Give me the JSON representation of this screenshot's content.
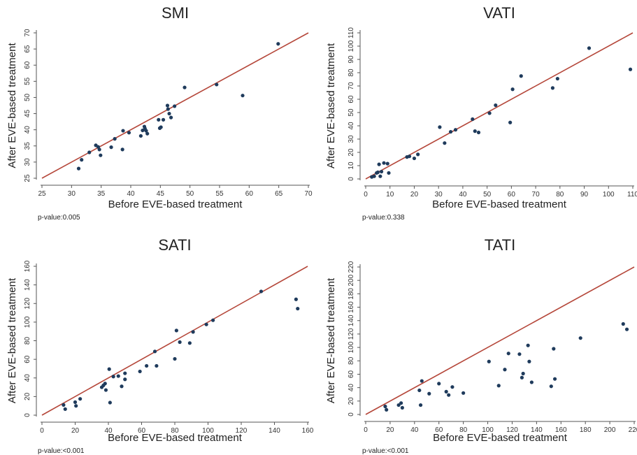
{
  "chart_data": [
    {
      "type": "scatter",
      "title": "SMI",
      "xlabel": "Before EVE-based treatment",
      "ylabel": "After EVE-based treatment",
      "pvalue": "p-value:0.005",
      "xlim": [
        25,
        70
      ],
      "ylim": [
        25,
        70
      ],
      "xticks": [
        25,
        30,
        35,
        40,
        45,
        50,
        55,
        60,
        65,
        70
      ],
      "yticks": [
        25,
        30,
        35,
        40,
        45,
        50,
        55,
        60,
        65,
        70
      ],
      "reference_line": "y = x",
      "point_color": "#1f3b5c",
      "line_color": "#b5473a",
      "x": [
        31.2,
        31.7,
        33.0,
        34.1,
        34.5,
        34.7,
        34.9,
        36.7,
        37.3,
        38.6,
        38.7,
        39.7,
        41.7,
        42.0,
        42.3,
        42.4,
        42.6,
        42.8,
        44.7,
        44.9,
        45.1,
        45.5,
        46.2,
        46.3,
        46.5,
        46.8,
        47.4,
        49.1,
        54.5,
        58.9,
        64.9
      ],
      "y": [
        28.0,
        30.7,
        33.0,
        35.2,
        34.7,
        33.9,
        32.1,
        34.6,
        37.2,
        33.9,
        39.7,
        39.1,
        38.1,
        39.8,
        41.0,
        40.4,
        39.7,
        38.8,
        43.1,
        40.5,
        40.8,
        43.1,
        47.5,
        46.4,
        45.0,
        43.8,
        47.3,
        53.1,
        54.0,
        50.6,
        66.6
      ]
    },
    {
      "type": "scatter",
      "title": "VATI",
      "xlabel": "Before EVE-based treatment",
      "ylabel": "After EVE-based treatment",
      "pvalue": "p-value:0.338",
      "xlim": [
        0,
        110
      ],
      "ylim": [
        0,
        110
      ],
      "xticks": [
        0,
        10,
        20,
        30,
        40,
        50,
        60,
        70,
        80,
        90,
        100,
        110
      ],
      "yticks": [
        0,
        10,
        20,
        30,
        40,
        50,
        60,
        70,
        80,
        90,
        100,
        110
      ],
      "reference_line": "y = x",
      "point_color": "#1f3b5c",
      "line_color": "#b5473a",
      "x": [
        2.5,
        3.5,
        4.5,
        5,
        5.5,
        6,
        6.5,
        7.5,
        9,
        9.5,
        17,
        18,
        20,
        21.5,
        30.5,
        32.5,
        35,
        37,
        44,
        45,
        46.5,
        51,
        53.5,
        59.5,
        60.5,
        64,
        77,
        79,
        92,
        109
      ],
      "y": [
        1.5,
        2,
        4.5,
        5,
        11,
        2,
        5.5,
        12,
        11.5,
        4.5,
        16.5,
        17,
        15.5,
        18.5,
        39,
        27,
        35.5,
        37,
        45,
        36,
        35,
        49.5,
        55.5,
        42.5,
        67.5,
        77.5,
        68.5,
        75.5,
        98.5,
        82.5
      ]
    },
    {
      "type": "scatter",
      "title": "SATI",
      "xlabel": "Before EVE-based treatment",
      "ylabel": "After EVE-based treatment",
      "pvalue": "p-value:<0.001",
      "xlim": [
        0,
        160
      ],
      "ylim": [
        0,
        160
      ],
      "xticks": [
        0,
        20,
        40,
        60,
        80,
        100,
        120,
        140,
        160
      ],
      "yticks": [
        0,
        20,
        40,
        60,
        80,
        100,
        120,
        140,
        160
      ],
      "reference_line": "y = x",
      "point_color": "#1f3b5c",
      "line_color": "#b5473a",
      "x": [
        13,
        14,
        20,
        20.5,
        23,
        36,
        37,
        38,
        38.5,
        40.5,
        41,
        43,
        46,
        48,
        50,
        50,
        59,
        63,
        68,
        69,
        80,
        81,
        83,
        89,
        91,
        99,
        103,
        132,
        153,
        154
      ],
      "y": [
        11,
        6.5,
        14,
        10,
        17.5,
        30,
        32,
        34,
        27,
        49.5,
        13.5,
        41.5,
        42,
        31,
        45,
        38.5,
        47,
        53,
        68.5,
        53,
        60.5,
        91,
        78.5,
        77.5,
        89.5,
        97.5,
        102,
        133,
        124.5,
        114.5
      ]
    },
    {
      "type": "scatter",
      "title": "TATI",
      "xlabel": "Before EVE-based treatment",
      "ylabel": "After EVE-based treatment",
      "pvalue": "p-value:<0.001",
      "xlim": [
        0,
        220
      ],
      "ylim": [
        0,
        220
      ],
      "xticks": [
        0,
        20,
        40,
        60,
        80,
        100,
        120,
        140,
        160,
        180,
        200,
        220
      ],
      "yticks": [
        0,
        20,
        40,
        60,
        80,
        100,
        120,
        140,
        160,
        180,
        200,
        220
      ],
      "reference_line": "y = x",
      "point_color": "#1f3b5c",
      "line_color": "#b5473a",
      "x": [
        16,
        17,
        27,
        29,
        30,
        44,
        45,
        46,
        52,
        60,
        66,
        68,
        71,
        80,
        101,
        109,
        114,
        117,
        126,
        128,
        129,
        133,
        134,
        136,
        152,
        154,
        155,
        176,
        211,
        214
      ],
      "y": [
        12,
        7,
        14,
        17,
        10,
        36,
        14,
        50,
        31,
        46,
        34,
        29,
        41,
        32,
        79,
        43,
        67,
        91,
        90,
        55,
        61,
        103,
        79,
        48,
        42,
        98,
        53,
        114,
        135,
        127
      ]
    }
  ]
}
